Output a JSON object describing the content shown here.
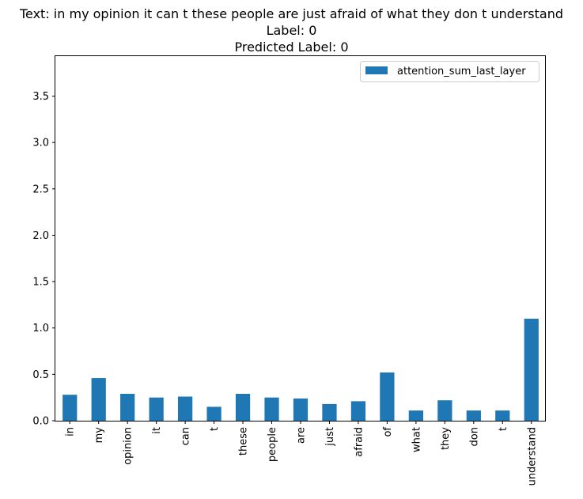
{
  "title_lines": [
    "Text: in my opinion it can t these people are just afraid of what they don t understand",
    "Label: 0",
    "Predicted Label: 0"
  ],
  "chart_data": {
    "type": "bar",
    "categories": [
      "in",
      "my",
      "opinion",
      "it",
      "can",
      "t",
      "these",
      "people",
      "are",
      "just",
      "afraid",
      "of",
      "what",
      "they",
      "don",
      "t",
      "understand"
    ],
    "series": [
      {
        "name": "attention_sum_last_layer",
        "color": "#1f77b4",
        "values": [
          0.28,
          0.46,
          0.29,
          0.25,
          0.26,
          0.15,
          0.29,
          0.25,
          0.24,
          0.18,
          0.21,
          0.52,
          0.11,
          0.22,
          0.11,
          0.11,
          1.1
        ]
      }
    ],
    "ylim": [
      0,
      3.94
    ],
    "yticks": [
      "0.0",
      "0.5",
      "1.0",
      "1.5",
      "2.0",
      "2.5",
      "3.0",
      "3.5"
    ],
    "xlabel": "",
    "ylabel": "",
    "legend_position": "top-right",
    "grid": false
  }
}
